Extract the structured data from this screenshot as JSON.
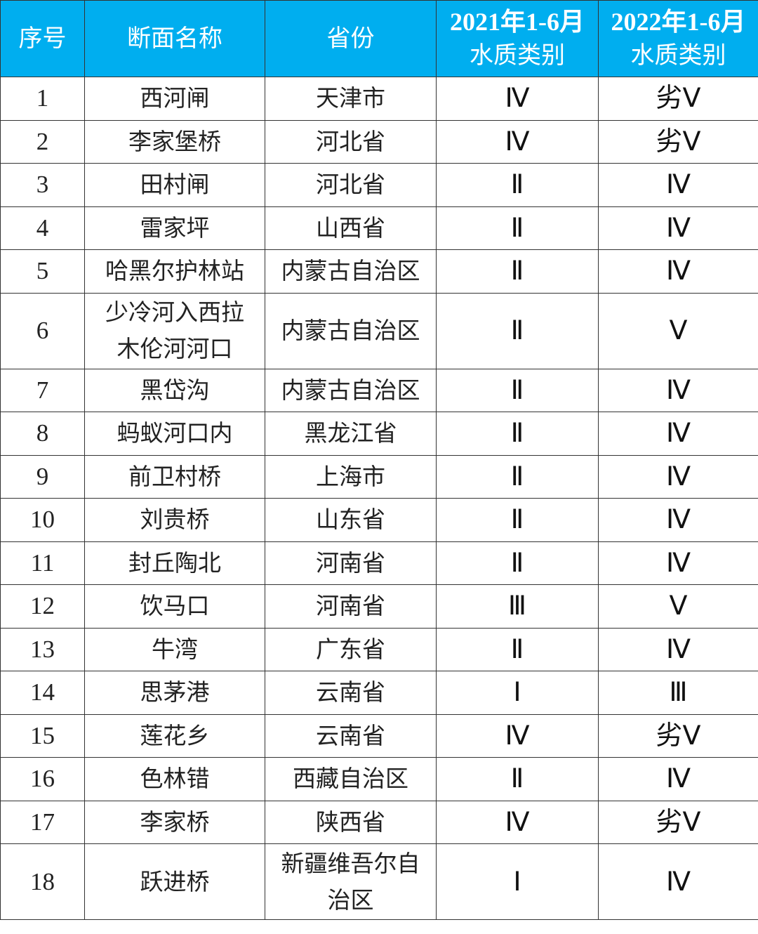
{
  "header": {
    "index": "序号",
    "section_name": "断面名称",
    "province": "省份",
    "col2021_period": "2021年1-6月",
    "col2021_label": "水质类别",
    "col2022_period": "2022年1-6月",
    "col2022_label": "水质类别",
    "header_color": "#00AEEF"
  },
  "rows": [
    {
      "index": "1",
      "name": "西河闸",
      "province": "天津市",
      "q2021": "Ⅳ",
      "q2022": "劣Ⅴ"
    },
    {
      "index": "2",
      "name": "李家堡桥",
      "province": "河北省",
      "q2021": "Ⅳ",
      "q2022": "劣Ⅴ"
    },
    {
      "index": "3",
      "name": "田村闸",
      "province": "河北省",
      "q2021": "Ⅱ",
      "q2022": "Ⅳ"
    },
    {
      "index": "4",
      "name": "雷家坪",
      "province": "山西省",
      "q2021": "Ⅱ",
      "q2022": "Ⅳ"
    },
    {
      "index": "5",
      "name": "哈黑尔护林站",
      "province": "内蒙古自治区",
      "q2021": "Ⅱ",
      "q2022": "Ⅳ"
    },
    {
      "index": "6",
      "name": "少冷河入西拉木伦河河口",
      "province": "内蒙古自治区",
      "q2021": "Ⅱ",
      "q2022": "Ⅴ"
    },
    {
      "index": "7",
      "name": "黑岱沟",
      "province": "内蒙古自治区",
      "q2021": "Ⅱ",
      "q2022": "Ⅳ"
    },
    {
      "index": "8",
      "name": "蚂蚁河口内",
      "province": "黑龙江省",
      "q2021": "Ⅱ",
      "q2022": "Ⅳ"
    },
    {
      "index": "9",
      "name": "前卫村桥",
      "province": "上海市",
      "q2021": "Ⅱ",
      "q2022": "Ⅳ"
    },
    {
      "index": "10",
      "name": "刘贵桥",
      "province": "山东省",
      "q2021": "Ⅱ",
      "q2022": "Ⅳ"
    },
    {
      "index": "11",
      "name": "封丘陶北",
      "province": "河南省",
      "q2021": "Ⅱ",
      "q2022": "Ⅳ"
    },
    {
      "index": "12",
      "name": "饮马口",
      "province": "河南省",
      "q2021": "Ⅲ",
      "q2022": "Ⅴ"
    },
    {
      "index": "13",
      "name": "牛湾",
      "province": "广东省",
      "q2021": "Ⅱ",
      "q2022": "Ⅳ"
    },
    {
      "index": "14",
      "name": "思茅港",
      "province": "云南省",
      "q2021": "Ⅰ",
      "q2022": "Ⅲ"
    },
    {
      "index": "15",
      "name": "莲花乡",
      "province": "云南省",
      "q2021": "Ⅳ",
      "q2022": "劣Ⅴ"
    },
    {
      "index": "16",
      "name": "色林错",
      "province": "西藏自治区",
      "q2021": "Ⅱ",
      "q2022": "Ⅳ"
    },
    {
      "index": "17",
      "name": "李家桥",
      "province": "陕西省",
      "q2021": "Ⅳ",
      "q2022": "劣Ⅴ"
    },
    {
      "index": "18",
      "name": "跃进桥",
      "province": "新疆维吾尔自治区",
      "q2021": "Ⅰ",
      "q2022": "Ⅳ"
    }
  ]
}
